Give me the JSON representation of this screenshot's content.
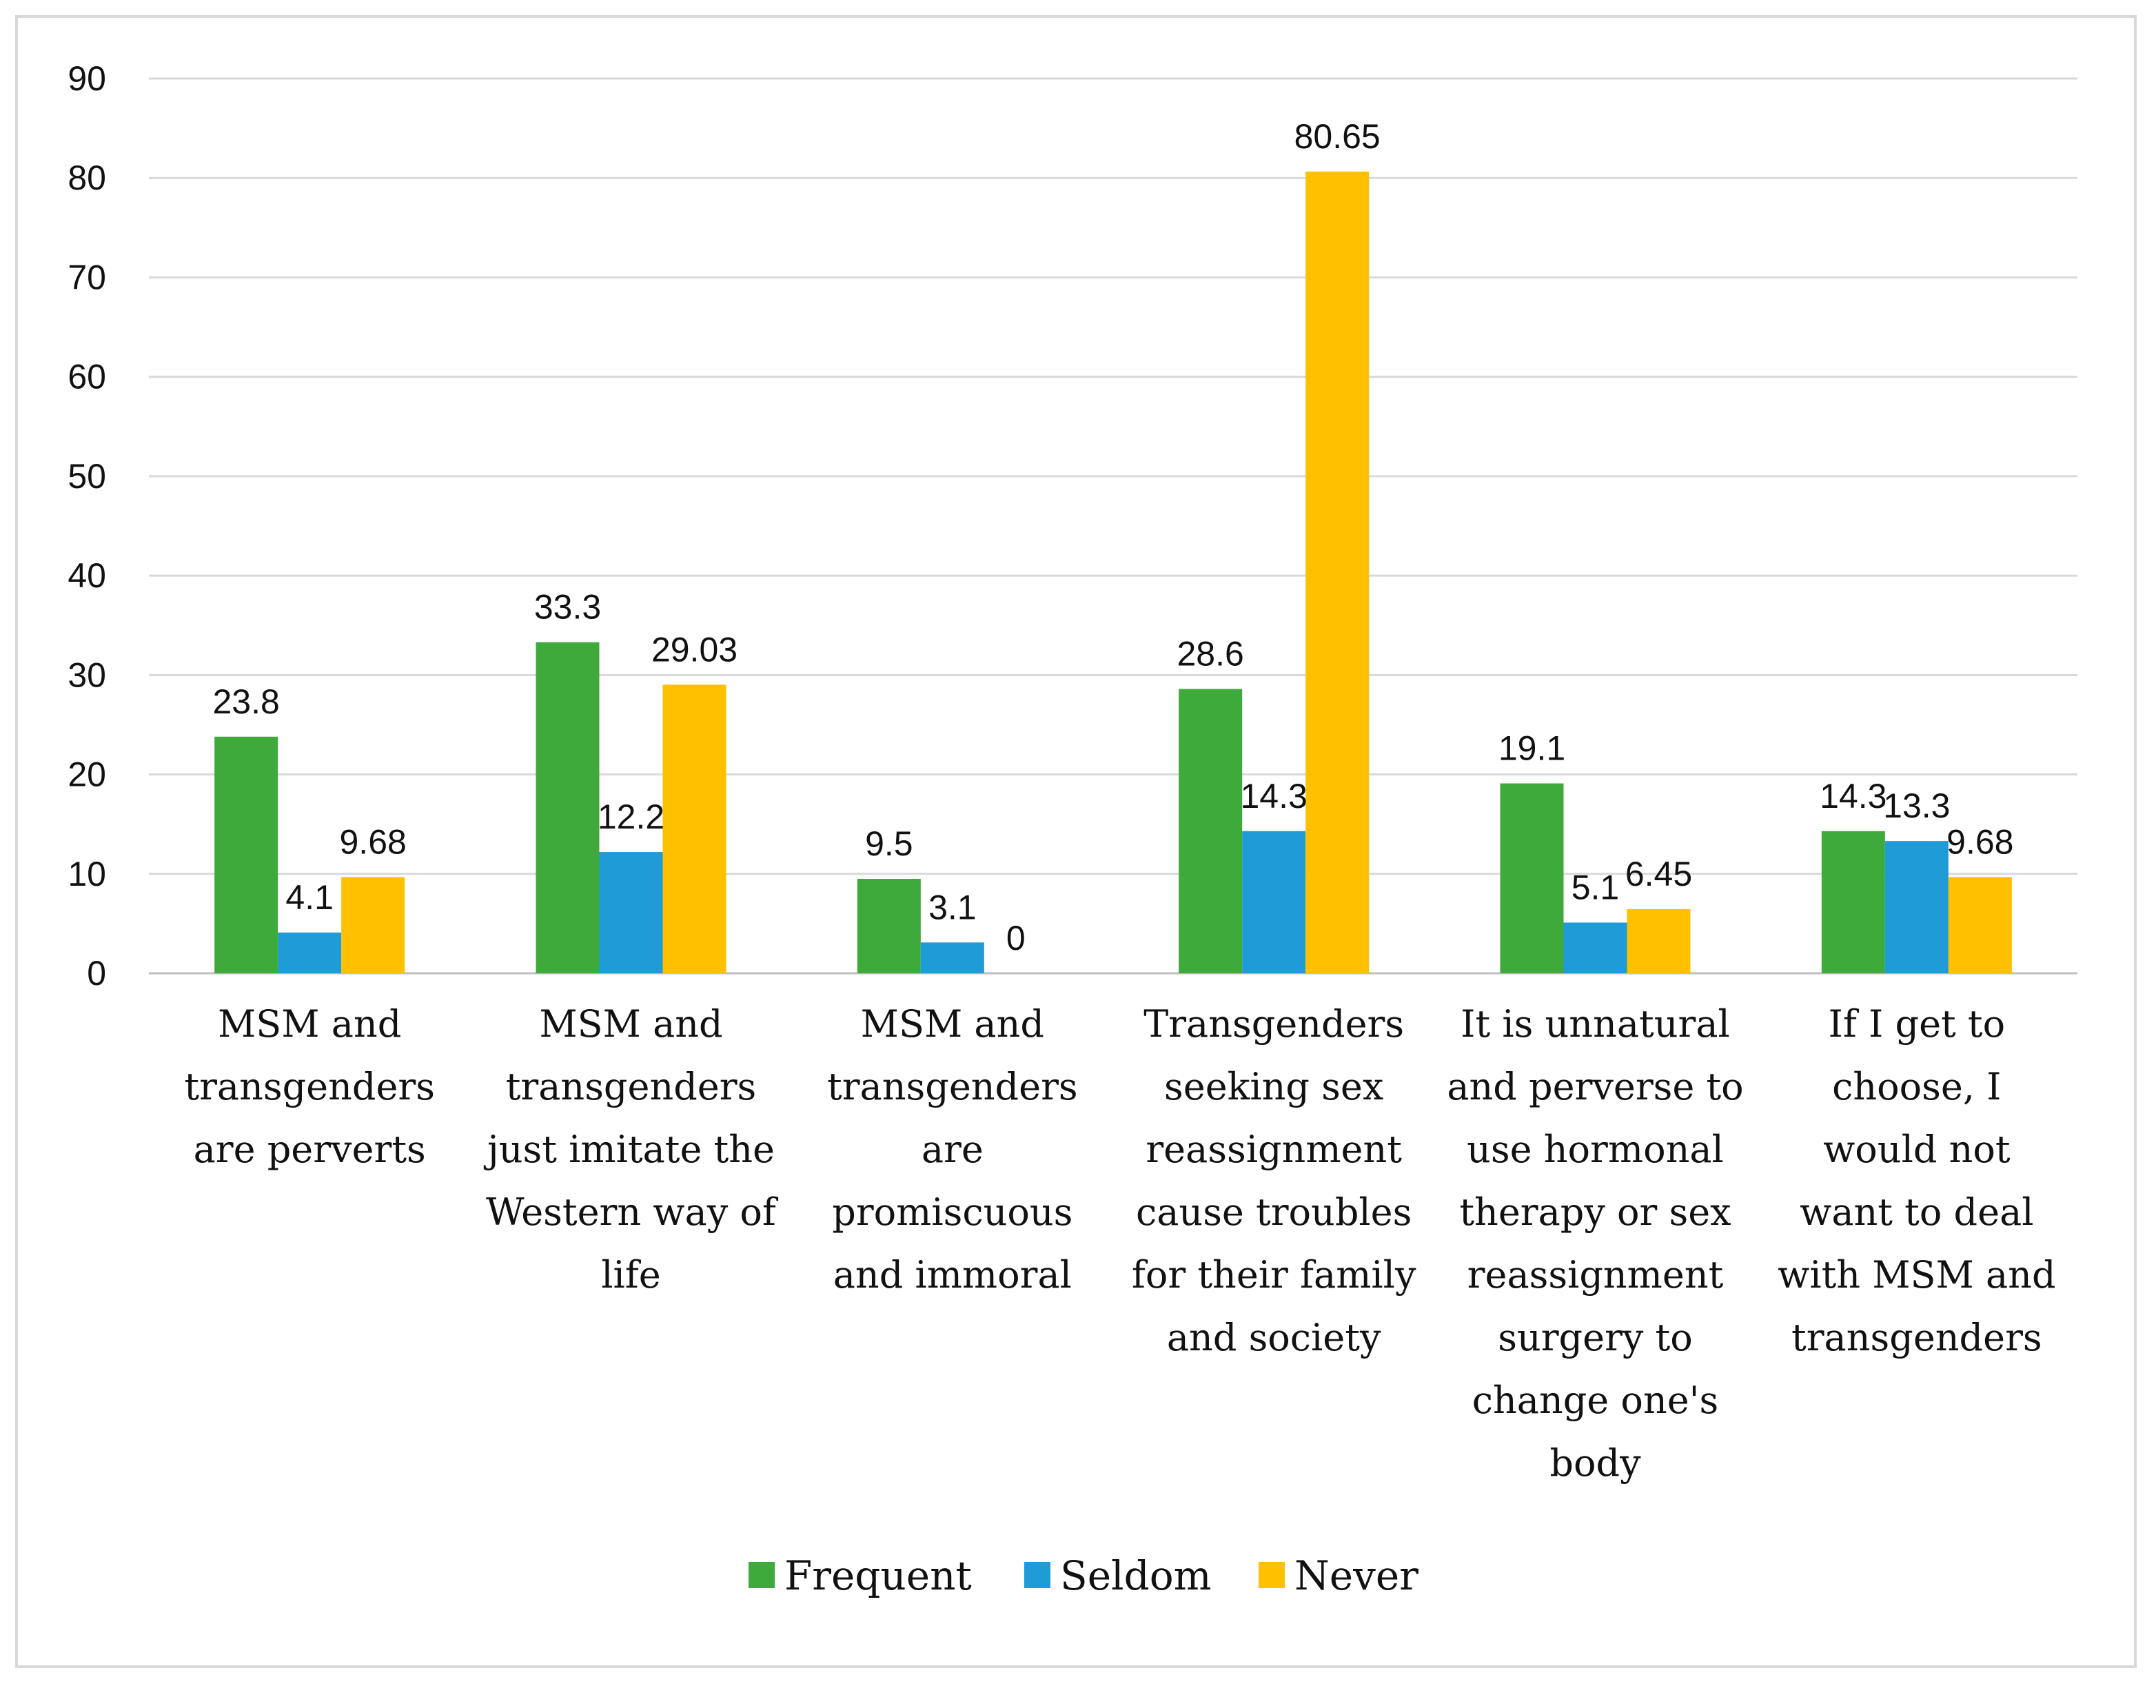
{
  "chart_data": {
    "type": "bar",
    "title": "",
    "xlabel": "",
    "ylabel": "",
    "ylim": [
      0,
      90
    ],
    "yticks": [
      0,
      10,
      20,
      30,
      40,
      50,
      60,
      70,
      80,
      90
    ],
    "grid": true,
    "legend_position": "bottom",
    "categories": [
      [
        "MSM and",
        "transgenders",
        "are perverts"
      ],
      [
        "MSM and",
        "transgenders",
        "just imitate the",
        "Western way of",
        "life"
      ],
      [
        "MSM and",
        "transgenders",
        "are",
        "promiscuous",
        "and immoral"
      ],
      [
        "Transgenders",
        "seeking sex",
        "reassignment",
        "cause troubles",
        "for their family",
        "and society"
      ],
      [
        "It is unnatural",
        "and perverse to",
        "use hormonal",
        "therapy or sex",
        "reassignment",
        "surgery to",
        "change one's",
        "body"
      ],
      [
        "If I get to",
        "choose, I",
        "would not",
        "want to deal",
        "with MSM and",
        "transgenders"
      ]
    ],
    "series": [
      {
        "name": "Frequent",
        "color": "#3eaa3b",
        "values": [
          23.8,
          33.3,
          9.5,
          28.6,
          19.1,
          14.3
        ],
        "labels": [
          "23.8",
          "33.3",
          "9.5",
          "28.6",
          "19.1",
          "14.3"
        ]
      },
      {
        "name": "Seldom",
        "color": "#1f9bd7",
        "values": [
          4.1,
          12.2,
          3.1,
          14.3,
          5.1,
          13.3
        ],
        "labels": [
          "4.1",
          "12.2",
          "3.1",
          "14.3",
          "5.1",
          "13.3"
        ]
      },
      {
        "name": "Never",
        "color": "#ffc000",
        "values": [
          9.68,
          29.03,
          0,
          80.65,
          6.45,
          9.68
        ],
        "labels": [
          "9.68",
          "29.03",
          "0",
          "80.65",
          "6.45",
          "9.68"
        ]
      }
    ]
  }
}
